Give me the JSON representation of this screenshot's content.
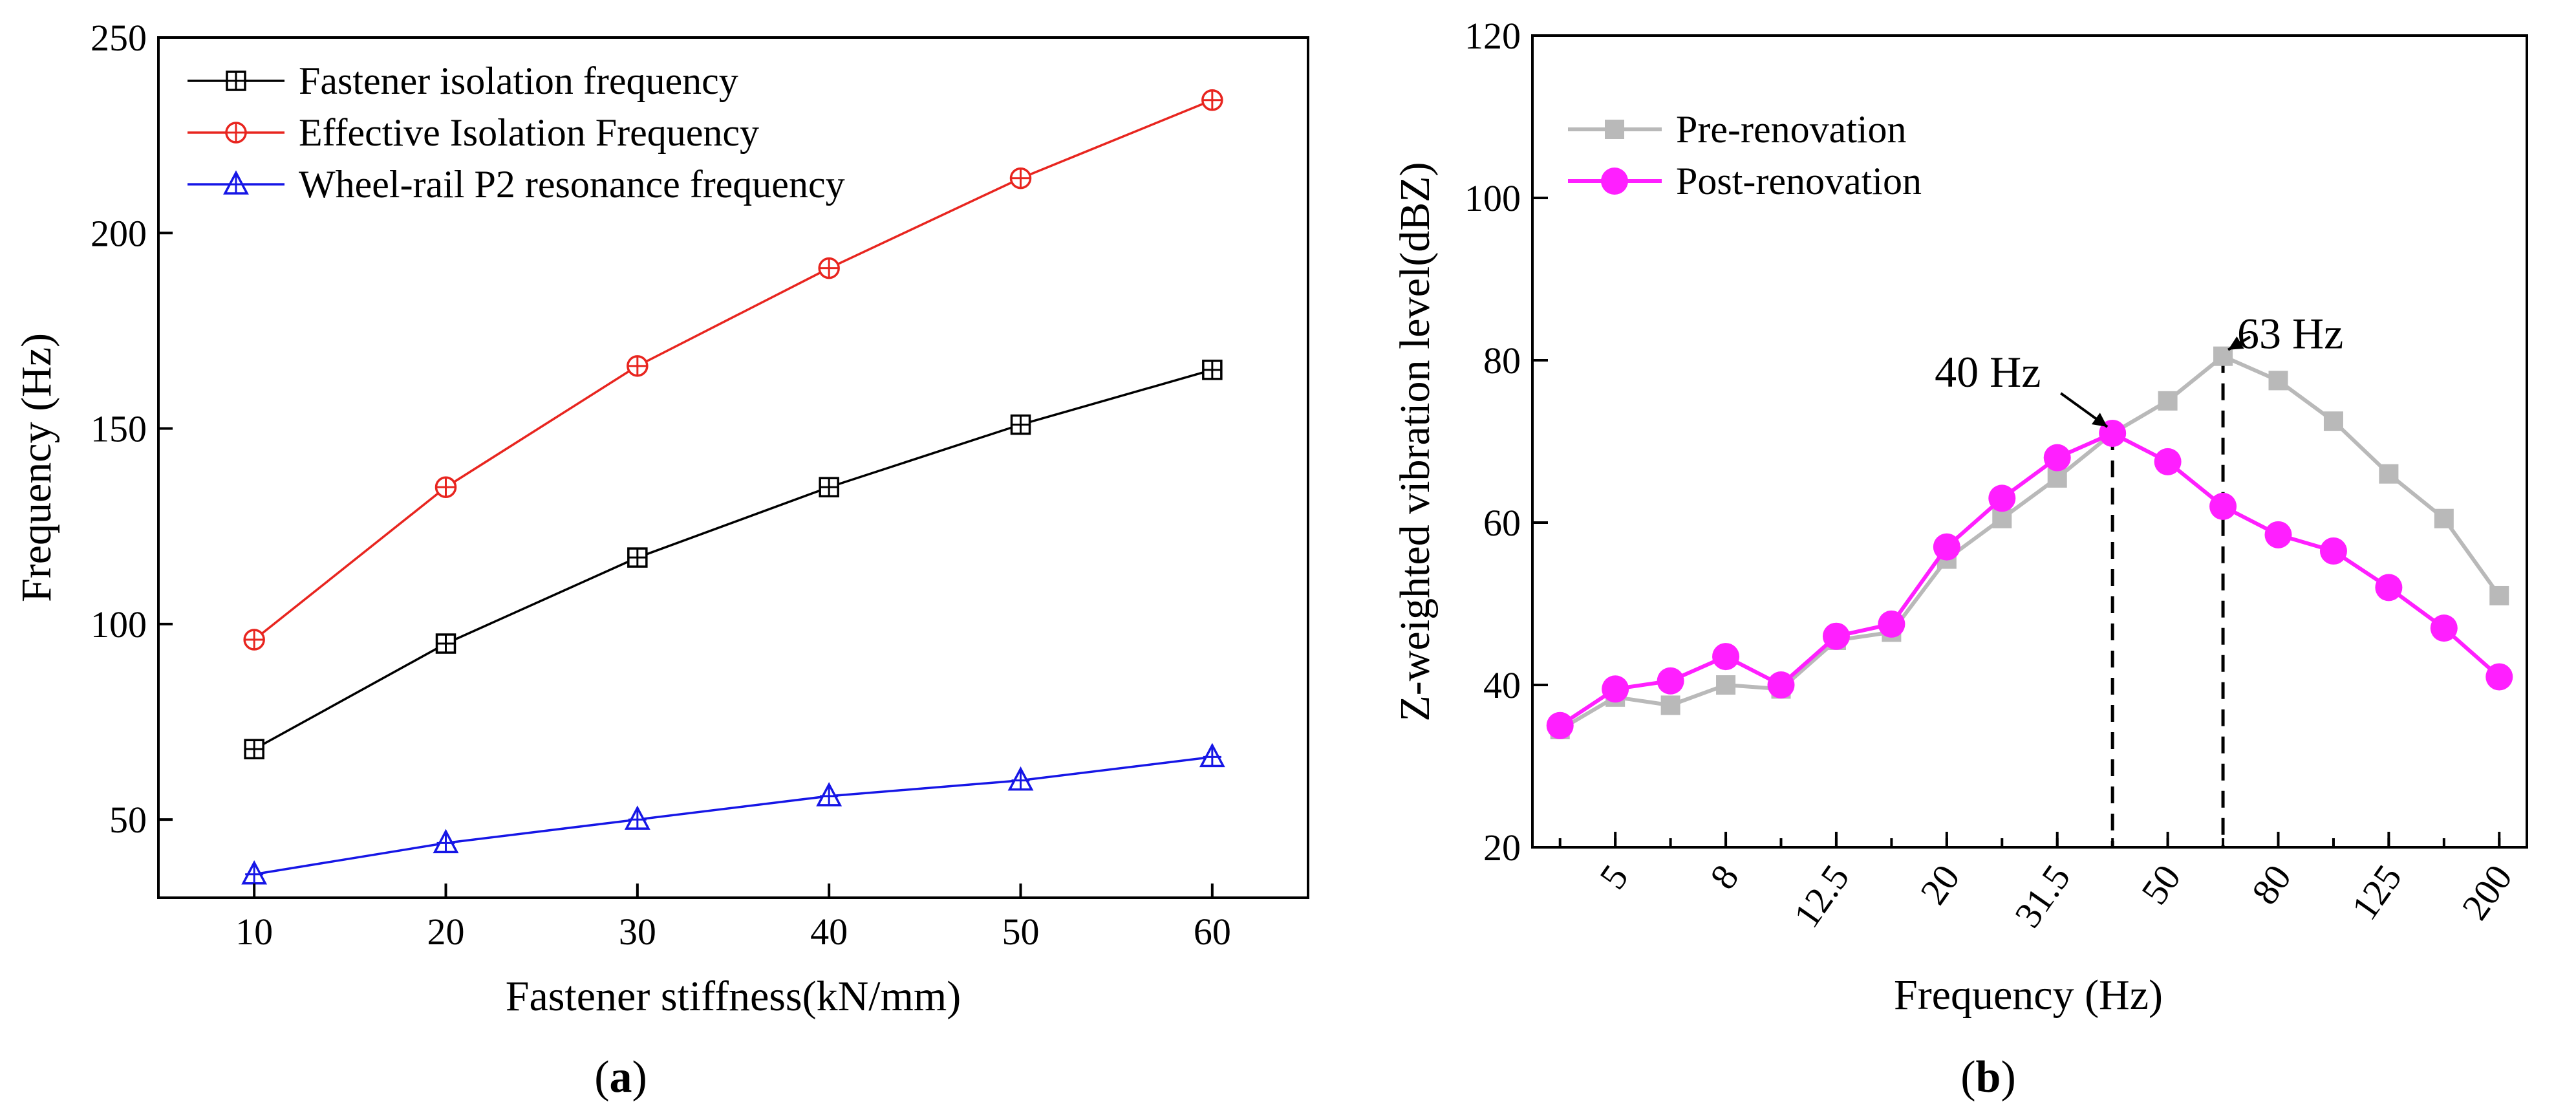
{
  "chart_data": [
    {
      "panel": "(a)",
      "panel_label": {
        "open": "(",
        "letter": "a",
        "close": ")"
      },
      "type": "line",
      "xlabel": "Fastener stiffness(kN/mm)",
      "ylabel": "Frequency (Hz)",
      "xlim": [
        5,
        65
      ],
      "ylim": [
        30,
        250
      ],
      "x_ticks": [
        10,
        20,
        30,
        40,
        50,
        60
      ],
      "y_ticks": [
        50,
        100,
        150,
        200,
        250
      ],
      "x": [
        10,
        20,
        30,
        40,
        50,
        60
      ],
      "legend_position": "top-left",
      "grid": false,
      "series": [
        {
          "name": "Fastener isolation frequency",
          "color": "#000000",
          "marker": "square-plus",
          "values": [
            68,
            95,
            117,
            135,
            151,
            165
          ]
        },
        {
          "name": "Effective Isolation Frequency",
          "color": "#e8251f",
          "marker": "circle-plus",
          "values": [
            96,
            135,
            166,
            191,
            214,
            234
          ]
        },
        {
          "name": "Wheel-rail P2 resonance frequency",
          "color": "#1616e6",
          "marker": "triangle-plus",
          "values": [
            36,
            44,
            50,
            56,
            60,
            66
          ]
        }
      ]
    },
    {
      "panel": "(b)",
      "panel_label": {
        "open": "(",
        "letter": "b",
        "close": ")"
      },
      "type": "line",
      "xlabel": "Frequency (Hz)",
      "ylabel": "Z-weighted vibration level(dBZ)",
      "ylim": [
        20,
        120
      ],
      "y_ticks": [
        20,
        40,
        60,
        80,
        100,
        120
      ],
      "x_scale": "1/3-octave band centre frequency (Hz)",
      "x": [
        4,
        5,
        6.3,
        8,
        10,
        12.5,
        16,
        20,
        25,
        31.5,
        40,
        50,
        63,
        80,
        100,
        125,
        160,
        200
      ],
      "x_tick_labels": [
        "5",
        "8",
        "12.5",
        "20",
        "31.5",
        "50",
        "80",
        "125",
        "200"
      ],
      "x_tick_values": [
        5,
        8,
        12.5,
        20,
        31.5,
        50,
        80,
        125,
        200
      ],
      "legend_position": "top-left",
      "grid": false,
      "series": [
        {
          "name": "Pre-renovation",
          "color": "#b9b9b9",
          "marker": "square",
          "values": [
            34.5,
            38.5,
            37.5,
            40,
            39.5,
            45.5,
            46.5,
            55.5,
            60.5,
            65.5,
            71,
            75,
            80.5,
            77.5,
            72.5,
            66,
            60.5,
            51
          ]
        },
        {
          "name": "Post-renovation",
          "color": "#ff1fff",
          "marker": "circle",
          "values": [
            35,
            39.5,
            40.5,
            43.5,
            40,
            46,
            47.5,
            57,
            63,
            68,
            71,
            67.5,
            62,
            58.5,
            56.5,
            52,
            47,
            41
          ]
        }
      ],
      "annotations": [
        {
          "text": "40 Hz",
          "x": 40,
          "y": 71
        },
        {
          "text": "63 Hz",
          "x": 63,
          "y": 80.5
        }
      ],
      "reference_lines": [
        {
          "type": "vertical-dashed",
          "x": 40,
          "from_y": 20,
          "to_y": 71
        },
        {
          "type": "vertical-dashed",
          "x": 63,
          "from_y": 20,
          "to_y": 80.5
        }
      ]
    }
  ]
}
